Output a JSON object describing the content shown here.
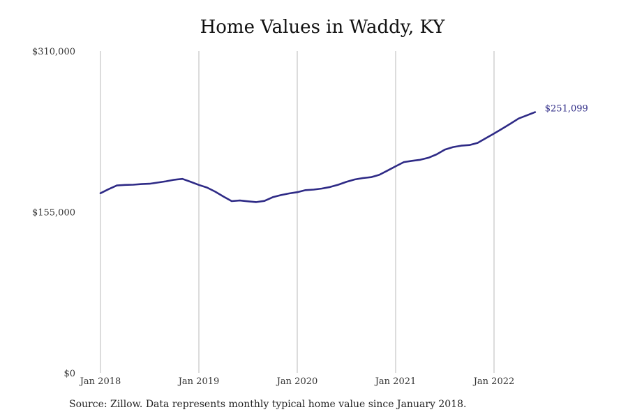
{
  "chart_data": {
    "type": "line",
    "title": "Home Values in Waddy, KY",
    "source": "Source: Zillow. Data represents monthly typical home value since January 2018.",
    "xlabel": "",
    "ylabel": "",
    "y_ticks": [
      "$0",
      "$155,000",
      "$310,000"
    ],
    "y_tick_values": [
      0,
      155000,
      310000
    ],
    "ylim": [
      0,
      310000
    ],
    "x_ticks": [
      "Jan 2018",
      "Jan 2019",
      "Jan 2020",
      "Jan 2021",
      "Jan 2022"
    ],
    "grid": "vertical lines at each x tick",
    "line_color": "#2e2a86",
    "end_label": "$251,099",
    "series": [
      {
        "x": [
          "2018-01",
          "2018-02",
          "2018-03",
          "2018-04",
          "2018-05",
          "2018-06",
          "2018-07",
          "2018-08",
          "2018-09",
          "2018-10",
          "2018-11",
          "2018-12",
          "2019-01",
          "2019-02",
          "2019-03",
          "2019-04",
          "2019-05",
          "2019-06",
          "2019-07",
          "2019-08",
          "2019-09",
          "2019-10",
          "2019-11",
          "2019-12",
          "2020-01",
          "2020-02",
          "2020-03",
          "2020-04",
          "2020-05",
          "2020-06",
          "2020-07",
          "2020-08",
          "2020-09",
          "2020-10",
          "2020-11",
          "2020-12",
          "2021-01",
          "2021-02",
          "2021-03",
          "2021-04",
          "2021-05",
          "2021-06",
          "2021-07",
          "2021-08",
          "2021-09",
          "2021-10",
          "2021-11",
          "2021-12",
          "2022-01",
          "2022-02",
          "2022-03",
          "2022-04",
          "2022-05",
          "2022-06"
        ],
        "values": [
          173000,
          177000,
          180500,
          181000,
          181200,
          181800,
          182200,
          183300,
          184500,
          186000,
          186800,
          184000,
          181000,
          178500,
          174500,
          169800,
          165400,
          166000,
          165200,
          164500,
          165600,
          169200,
          171200,
          172800,
          174000,
          176000,
          176500,
          177500,
          179000,
          181200,
          184000,
          186300,
          187600,
          188500,
          190700,
          194800,
          199000,
          203000,
          204200,
          205200,
          207200,
          210500,
          215000,
          217500,
          218800,
          219400,
          221500,
          226000,
          230500,
          235200,
          240000,
          245000,
          248000,
          251099
        ]
      }
    ]
  }
}
